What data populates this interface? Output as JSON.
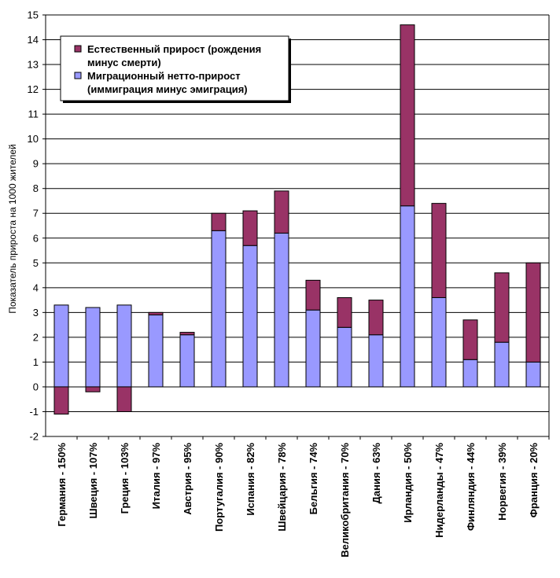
{
  "chart_data": {
    "type": "bar",
    "stacked": true,
    "ylabel": "Показатель прироста на 1000 жителей",
    "ylim": [
      -2,
      15
    ],
    "yticks": [
      -2,
      -1,
      0,
      1,
      2,
      3,
      4,
      5,
      6,
      7,
      8,
      9,
      10,
      11,
      12,
      13,
      14,
      15
    ],
    "grid": "horizontal",
    "legend_position": "top-left",
    "categories": [
      "Германия - 150%",
      "Швеция - 107%",
      "Греция - 103%",
      "Италия - 97%",
      "Австрия - 95%",
      "Португалия - 90%",
      "Испания - 82%",
      "Швейцария - 78%",
      "Бельгия - 74%",
      "Великобритания - 70%",
      "Дания - 63%",
      "Ирландия - 50%",
      "Нидерланды - 47%",
      "Финляндия - 44%",
      "Норвегия - 39%",
      "Франция - 20%"
    ],
    "series": [
      {
        "name": "Миграционный нетто-прирост (иммиграция минус эмиграция)",
        "legend_lines": [
          "Миграционный нетто-прирост",
          "(иммиграция минус эмиграция)"
        ],
        "color": "#9999ff",
        "values": [
          3.3,
          3.2,
          3.3,
          2.9,
          2.1,
          6.3,
          5.7,
          6.2,
          3.1,
          2.4,
          2.1,
          7.3,
          3.6,
          1.1,
          1.8,
          1.0
        ]
      },
      {
        "name": "Естественный прирост (рождения минус смерти)",
        "legend_lines": [
          "Естественный прирост (рождения",
          "минус смерти)"
        ],
        "color": "#993366",
        "values": [
          -1.1,
          -0.2,
          -1.0,
          0.1,
          0.1,
          0.7,
          1.4,
          1.7,
          1.2,
          1.2,
          1.4,
          7.3,
          3.8,
          1.6,
          2.8,
          4.0
        ]
      }
    ]
  }
}
